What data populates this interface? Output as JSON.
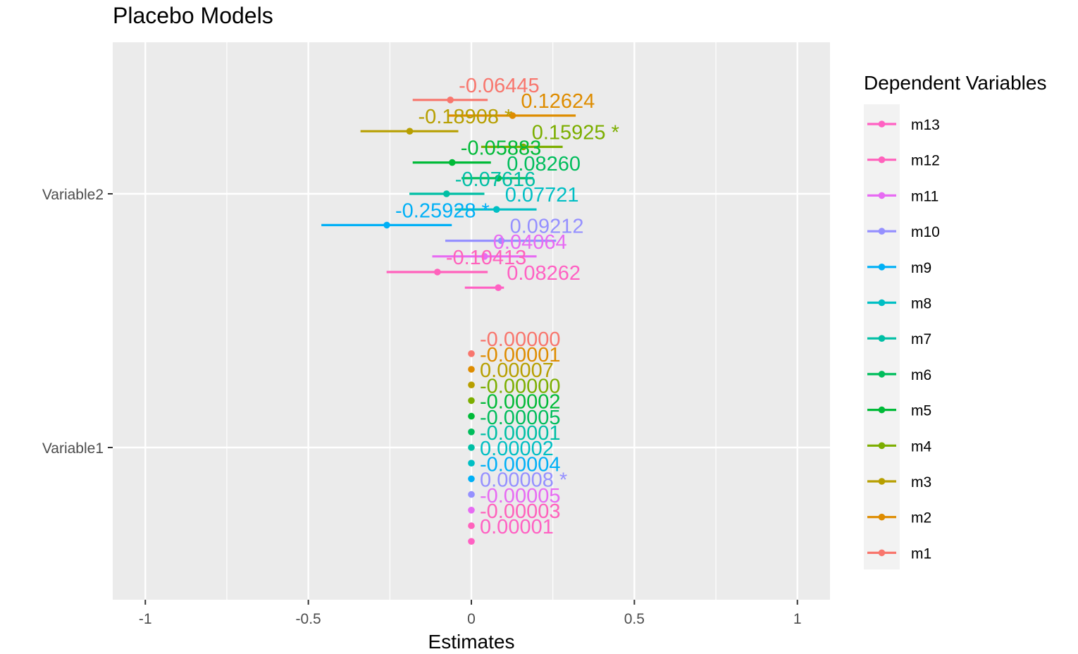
{
  "chart_data": {
    "type": "scatter",
    "title": "Placebo Models",
    "xlabel": "Estimates",
    "ylabel": "",
    "xlim": [
      -1.1,
      1.1
    ],
    "x_ticks": [
      {
        "value": -1,
        "label": "-1"
      },
      {
        "value": -0.5,
        "label": "-0.5"
      },
      {
        "value": 0,
        "label": "0"
      },
      {
        "value": 0.5,
        "label": "0.5"
      },
      {
        "value": 1,
        "label": "1"
      }
    ],
    "x_minor_ticks": [
      -0.75,
      -0.25,
      0.25,
      0.75
    ],
    "categories": [
      "Variable1",
      "Variable2"
    ],
    "legend": {
      "title": "Dependent Variables",
      "placement": "right"
    },
    "grid": true,
    "series": [
      {
        "name": "m13",
        "color": "#FF61C3",
        "points": [
          {
            "category": "Variable2",
            "estimate": 0.08262,
            "ci": [
              -0.02,
              0.1
            ],
            "label": "0.08262"
          },
          {
            "category": "Variable1",
            "estimate": 1e-05,
            "ci": [
              1e-05,
              1e-05
            ],
            "label": "0.00001"
          }
        ]
      },
      {
        "name": "m12",
        "color": "#FF62BC",
        "points": [
          {
            "category": "Variable2",
            "estimate": -0.10413,
            "ci": [
              -0.26,
              0.05
            ],
            "label": "-0.10413"
          },
          {
            "category": "Variable1",
            "estimate": -3e-05,
            "ci": [
              -3e-05,
              -3e-05
            ],
            "label": "-0.00003"
          }
        ]
      },
      {
        "name": "m11",
        "color": "#E76BF3",
        "points": [
          {
            "category": "Variable2",
            "estimate": 0.04064,
            "ci": [
              -0.12,
              0.2
            ],
            "label": "0.04064"
          },
          {
            "category": "Variable1",
            "estimate": -5e-05,
            "ci": [
              -5e-05,
              -5e-05
            ],
            "label": "-0.00005"
          }
        ]
      },
      {
        "name": "m10",
        "color": "#9590FF",
        "points": [
          {
            "category": "Variable2",
            "estimate": 0.09212,
            "ci": [
              -0.08,
              0.26
            ],
            "label": "0.09212"
          },
          {
            "category": "Variable1",
            "estimate": 8e-05,
            "ci": [
              8e-05,
              8e-05
            ],
            "label": "0.00008 *"
          }
        ]
      },
      {
        "name": "m9",
        "color": "#00B0F6",
        "points": [
          {
            "category": "Variable2",
            "estimate": -0.25928,
            "ci": [
              -0.46,
              -0.06
            ],
            "label": "-0.25928 *"
          },
          {
            "category": "Variable1",
            "estimate": -4e-05,
            "ci": [
              -4e-05,
              -4e-05
            ],
            "label": "-0.00004"
          }
        ]
      },
      {
        "name": "m8",
        "color": "#00BFC4",
        "points": [
          {
            "category": "Variable2",
            "estimate": 0.07721,
            "ci": [
              -0.05,
              0.2
            ],
            "label": "0.07721"
          },
          {
            "category": "Variable1",
            "estimate": 2e-05,
            "ci": [
              2e-05,
              2e-05
            ],
            "label": "0.00002"
          }
        ]
      },
      {
        "name": "m7",
        "color": "#00BFA5",
        "points": [
          {
            "category": "Variable2",
            "estimate": -0.07616,
            "ci": [
              -0.19,
              0.04
            ],
            "label": "-0.07616"
          },
          {
            "category": "Variable1",
            "estimate": -1e-05,
            "ci": [
              -1e-05,
              -1e-05
            ],
            "label": "-0.00001"
          }
        ]
      },
      {
        "name": "m6",
        "color": "#00BD5C",
        "points": [
          {
            "category": "Variable2",
            "estimate": 0.0826,
            "ci": [
              -0.03,
              0.19
            ],
            "label": "0.08260"
          },
          {
            "category": "Variable1",
            "estimate": -5e-05,
            "ci": [
              -5e-05,
              -5e-05
            ],
            "label": "-0.00005"
          }
        ]
      },
      {
        "name": "m5",
        "color": "#00BA38",
        "points": [
          {
            "category": "Variable2",
            "estimate": -0.05883,
            "ci": [
              -0.18,
              0.06
            ],
            "label": "-0.05883"
          },
          {
            "category": "Variable1",
            "estimate": -2e-05,
            "ci": [
              -2e-05,
              -2e-05
            ],
            "label": "-0.00002"
          }
        ]
      },
      {
        "name": "m4",
        "color": "#7CAE00",
        "points": [
          {
            "category": "Variable2",
            "estimate": 0.15925,
            "ci": [
              0.03,
              0.28
            ],
            "label": "0.15925 *"
          },
          {
            "category": "Variable1",
            "estimate": -0.0,
            "ci": [
              0,
              0
            ],
            "label": "-0.00000"
          }
        ]
      },
      {
        "name": "m3",
        "color": "#B79F00",
        "points": [
          {
            "category": "Variable2",
            "estimate": -0.18908,
            "ci": [
              -0.34,
              -0.04
            ],
            "label": "-0.18908 *"
          },
          {
            "category": "Variable1",
            "estimate": 7e-05,
            "ci": [
              7e-05,
              7e-05
            ],
            "label": "0.00007"
          }
        ]
      },
      {
        "name": "m2",
        "color": "#DE8C00",
        "points": [
          {
            "category": "Variable2",
            "estimate": 0.12624,
            "ci": [
              -0.07,
              0.32
            ],
            "label": "0.12624"
          },
          {
            "category": "Variable1",
            "estimate": -1e-05,
            "ci": [
              -1e-05,
              -1e-05
            ],
            "label": "-0.00001"
          }
        ]
      },
      {
        "name": "m1",
        "color": "#F8766D",
        "points": [
          {
            "category": "Variable2",
            "estimate": -0.06445,
            "ci": [
              -0.18,
              0.05
            ],
            "label": "-0.06445"
          },
          {
            "category": "Variable1",
            "estimate": -0.0,
            "ci": [
              0,
              0
            ],
            "label": "-0.00000"
          }
        ]
      }
    ]
  },
  "colors": {
    "panel_background": "#EBEBEB",
    "grid_line": "#FFFFFF",
    "tick_text": "#4D4D4D"
  }
}
